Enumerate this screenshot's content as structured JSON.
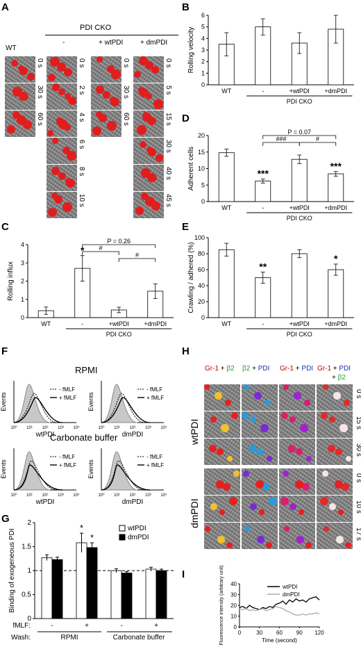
{
  "panels": {
    "A": {
      "label": "A",
      "title": "PDI CKO",
      "groups": [
        "WT",
        "-",
        "+ wtPDI",
        "+ dmPDI"
      ],
      "times": {
        "wt": [
          "0 s",
          "30 s",
          "60 s"
        ],
        "cko": [
          "0 s",
          "2 s",
          "4 s",
          "6 s",
          "8 s",
          "10 s"
        ],
        "wtpdi": [
          "0 s",
          "30 s",
          "60 s"
        ],
        "dmpdi": [
          "0 s",
          "5 s",
          "15 s",
          "30 s",
          "40 s",
          "45 s"
        ]
      }
    },
    "B": {
      "label": "B"
    },
    "C": {
      "label": "C"
    },
    "D": {
      "label": "D"
    },
    "E": {
      "label": "E"
    },
    "F": {
      "label": "F",
      "cond1": "RPMI",
      "cond2": "Carbonate buffer",
      "ylabel": "Events",
      "legend_minus": "- fMLF",
      "legend_plus": "+ fMLF",
      "xlab_wt": "wtPDI",
      "xlab_dm": "dmPDI"
    },
    "G": {
      "label": "G"
    },
    "H": {
      "label": "H",
      "col_headers": [
        [
          {
            "t": "Gr-1",
            "c": "#c00000"
          },
          {
            "t": " + ",
            "c": "#000"
          },
          {
            "t": "β2",
            "c": "#2e9a2e"
          }
        ],
        [
          {
            "t": "β2",
            "c": "#2e9a2e"
          },
          {
            "t": " + ",
            "c": "#000"
          },
          {
            "t": "PDI",
            "c": "#1f2fbf"
          }
        ],
        [
          {
            "t": "Gr-1",
            "c": "#c00000"
          },
          {
            "t": " + ",
            "c": "#000"
          },
          {
            "t": "PDI",
            "c": "#1f2fbf"
          }
        ],
        [
          {
            "t": "Gr-1",
            "c": "#c00000"
          },
          {
            "t": " + ",
            "c": "#000"
          },
          {
            "t": "PDI",
            "c": "#1f2fbf"
          }
        ]
      ],
      "col4_extra": [
        {
          "t": "+ ",
          "c": "#000"
        },
        {
          "t": "β2",
          "c": "#2e9a2e"
        }
      ],
      "row_group_wt": "wtPDI",
      "row_group_dm": "dmPDI",
      "times_wt": [
        "0 s",
        "15 s",
        "30 s"
      ],
      "times_dm": [
        "0 s",
        "10 s",
        "17 s"
      ]
    },
    "I": {
      "label": "I"
    }
  },
  "chart_data": [
    {
      "id": "B",
      "type": "bar",
      "ylabel": "Rolling velocity",
      "categories": [
        "WT",
        "-",
        "+wtPDI",
        "+dmPDI"
      ],
      "group_label": "PDI CKO",
      "values": [
        3.5,
        5.0,
        3.6,
        4.8
      ],
      "errors": [
        1.0,
        0.7,
        0.9,
        1.2
      ],
      "ylim": [
        0,
        6
      ],
      "yticks": [
        0,
        1,
        2,
        3,
        4,
        5,
        6
      ]
    },
    {
      "id": "D",
      "type": "bar",
      "ylabel": "Adherent cells",
      "categories": [
        "WT",
        "-",
        "+wtPDI",
        "+dmPDI"
      ],
      "group_label": "PDI CKO",
      "values": [
        14.8,
        6.2,
        12.8,
        8.4
      ],
      "errors": [
        1.1,
        0.6,
        1.3,
        0.7
      ],
      "ylim": [
        0,
        20
      ],
      "yticks": [
        0,
        5,
        10,
        15,
        20
      ],
      "significance": [
        "",
        "***",
        "",
        "***"
      ],
      "brackets": [
        {
          "from": 1,
          "to": 3,
          "text": "P = 0.07",
          "level": 2
        },
        {
          "from": 1,
          "to": 2,
          "text": "###",
          "level": 1
        },
        {
          "from": 2,
          "to": 3,
          "text": "#",
          "level": 1
        }
      ]
    },
    {
      "id": "C",
      "type": "bar",
      "ylabel": "Rolling influx",
      "categories": [
        "WT",
        "-",
        "+wtPDI",
        "+dmPDI"
      ],
      "group_label": "PDI CKO",
      "values": [
        0.38,
        2.7,
        0.42,
        1.45
      ],
      "errors": [
        0.2,
        0.7,
        0.15,
        0.4
      ],
      "ylim": [
        0,
        4
      ],
      "yticks": [
        0,
        1,
        2,
        3,
        4
      ],
      "significance": [
        "",
        "*",
        "",
        ""
      ],
      "brackets": [
        {
          "from": 1,
          "to": 3,
          "text": "P = 0.26",
          "level": 2
        },
        {
          "from": 1,
          "to": 2,
          "text": "#",
          "level": 1
        },
        {
          "from": 2,
          "to": 3,
          "text": "#",
          "level": 0
        }
      ]
    },
    {
      "id": "E",
      "type": "bar",
      "ylabel": "Crawling / adhered (%)",
      "categories": [
        "WT",
        "-",
        "+wtPDI",
        "+dmPDI"
      ],
      "group_label": "PDI CKO",
      "values": [
        85,
        50,
        80,
        60
      ],
      "errors": [
        8,
        7,
        5,
        7
      ],
      "ylim": [
        0,
        100
      ],
      "yticks": [
        0,
        20,
        40,
        60,
        80,
        100
      ],
      "significance": [
        "",
        "**",
        "",
        "*"
      ]
    },
    {
      "id": "G",
      "type": "bar",
      "ylabel": "Binding of exogeneous PDI",
      "series": [
        {
          "name": "wtPDI",
          "values": [
            1.27,
            1.58,
            1.0,
            1.03
          ],
          "errors": [
            0.06,
            0.2,
            0.04,
            0.04
          ]
        },
        {
          "name": "dmPDI",
          "values": [
            1.23,
            1.48,
            0.95,
            1.0
          ],
          "errors": [
            0.05,
            0.1,
            0.03,
            0.03
          ]
        }
      ],
      "fmlf": [
        "-",
        "+",
        "-",
        "+"
      ],
      "wash": [
        "RPMI",
        "Carbonate buffer"
      ],
      "row_labels": [
        "fMLF:",
        "Wash:"
      ],
      "significance": [
        "",
        "*",
        "",
        ""
      ],
      "significance2": [
        "",
        "*",
        "",
        ""
      ],
      "ylim": [
        0,
        2
      ],
      "yticks": [
        0,
        0.5,
        1,
        1.5,
        2
      ],
      "reference_line": 1
    },
    {
      "id": "I",
      "type": "line",
      "xlabel": "Time (second)",
      "ylabel": "Fluorescence intensity (arbitrary unit)",
      "xlim": [
        0,
        120
      ],
      "ylim": [
        0,
        40
      ],
      "xticks": [
        0,
        30,
        60,
        90,
        120
      ],
      "yticks": [
        0,
        10,
        20,
        30,
        40
      ],
      "series": [
        {
          "name": "wtPDI",
          "x": [
            0,
            5,
            10,
            15,
            20,
            25,
            30,
            35,
            40,
            45,
            50,
            55,
            60,
            65,
            70,
            75,
            80,
            85,
            90,
            95,
            100,
            105,
            110,
            115,
            120
          ],
          "y": [
            18,
            19,
            17,
            20,
            18,
            17,
            16,
            18,
            17,
            19,
            18,
            21,
            22,
            24,
            21,
            25,
            23,
            26,
            24,
            25,
            23,
            26,
            27,
            28,
            25
          ]
        },
        {
          "name": "dmPDI",
          "x": [
            0,
            5,
            10,
            15,
            20,
            25,
            30,
            35,
            40,
            45,
            50,
            55,
            60,
            65,
            70,
            75,
            80,
            85,
            90,
            95,
            100,
            105,
            110,
            115,
            120
          ],
          "y": [
            17,
            16,
            17,
            15,
            16,
            15,
            16,
            17,
            15,
            16,
            17,
            19,
            18,
            17,
            15,
            14,
            12,
            11,
            11,
            12,
            11,
            12,
            12,
            13,
            12
          ]
        }
      ]
    }
  ]
}
